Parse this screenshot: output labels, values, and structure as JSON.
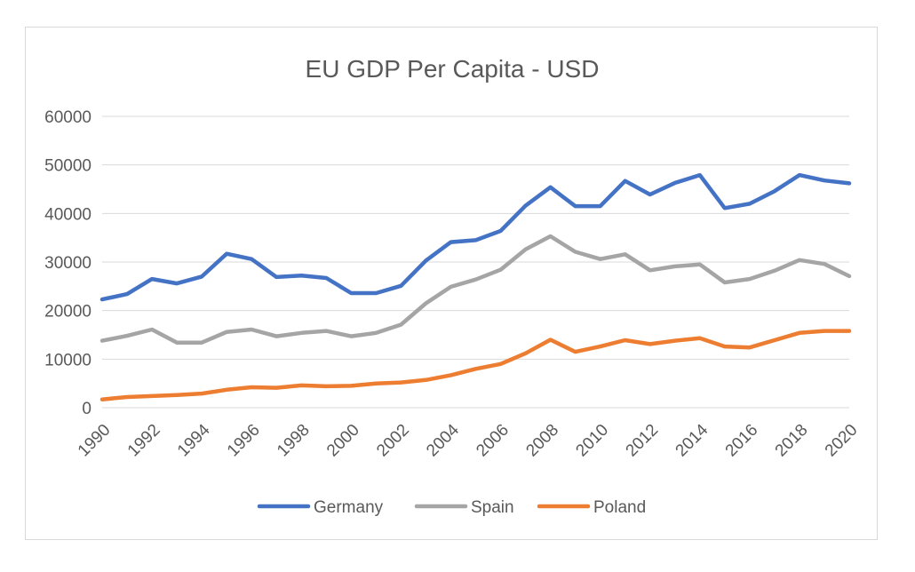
{
  "chart_data": {
    "type": "line",
    "title": "EU GDP Per Capita - USD",
    "xlabel": "",
    "ylabel": "",
    "ylim": [
      0,
      60000
    ],
    "yticks": [
      0,
      10000,
      20000,
      30000,
      40000,
      50000,
      60000
    ],
    "x": [
      1990,
      1991,
      1992,
      1993,
      1994,
      1995,
      1996,
      1997,
      1998,
      1999,
      2000,
      2001,
      2002,
      2003,
      2004,
      2005,
      2006,
      2007,
      2008,
      2009,
      2010,
      2011,
      2012,
      2013,
      2014,
      2015,
      2016,
      2017,
      2018,
      2019,
      2020
    ],
    "xtick_labels": [
      "1990",
      "1992",
      "1994",
      "1996",
      "1998",
      "2000",
      "2002",
      "2004",
      "2006",
      "2008",
      "2010",
      "2012",
      "2014",
      "2016",
      "2018",
      "2020"
    ],
    "grid": true,
    "legend_position": "bottom",
    "series": [
      {
        "name": "Germany",
        "color": "#4472C4",
        "values": [
          22300,
          23400,
          26500,
          25600,
          27000,
          31700,
          30600,
          26900,
          27200,
          26700,
          23600,
          23600,
          25100,
          30300,
          34100,
          34500,
          36400,
          41600,
          45400,
          41500,
          41500,
          46700,
          43900,
          46300,
          47900,
          41100,
          42000,
          44600,
          47900,
          46800,
          46200
        ]
      },
      {
        "name": "Spain",
        "color": "#A5A5A5",
        "values": [
          13800,
          14800,
          16100,
          13400,
          13400,
          15600,
          16100,
          14700,
          15400,
          15800,
          14700,
          15400,
          17100,
          21500,
          24900,
          26400,
          28400,
          32600,
          35300,
          32100,
          30600,
          31600,
          28300,
          29100,
          29500,
          25800,
          26500,
          28200,
          30400,
          29600,
          27100
        ]
      },
      {
        "name": "Poland",
        "color": "#ED7D31",
        "values": [
          1700,
          2200,
          2400,
          2600,
          2900,
          3700,
          4200,
          4100,
          4600,
          4400,
          4500,
          5000,
          5200,
          5700,
          6700,
          8000,
          9000,
          11200,
          14000,
          11500,
          12600,
          13900,
          13100,
          13800,
          14300,
          12600,
          12400,
          13900,
          15400,
          15800,
          15800
        ]
      }
    ]
  }
}
